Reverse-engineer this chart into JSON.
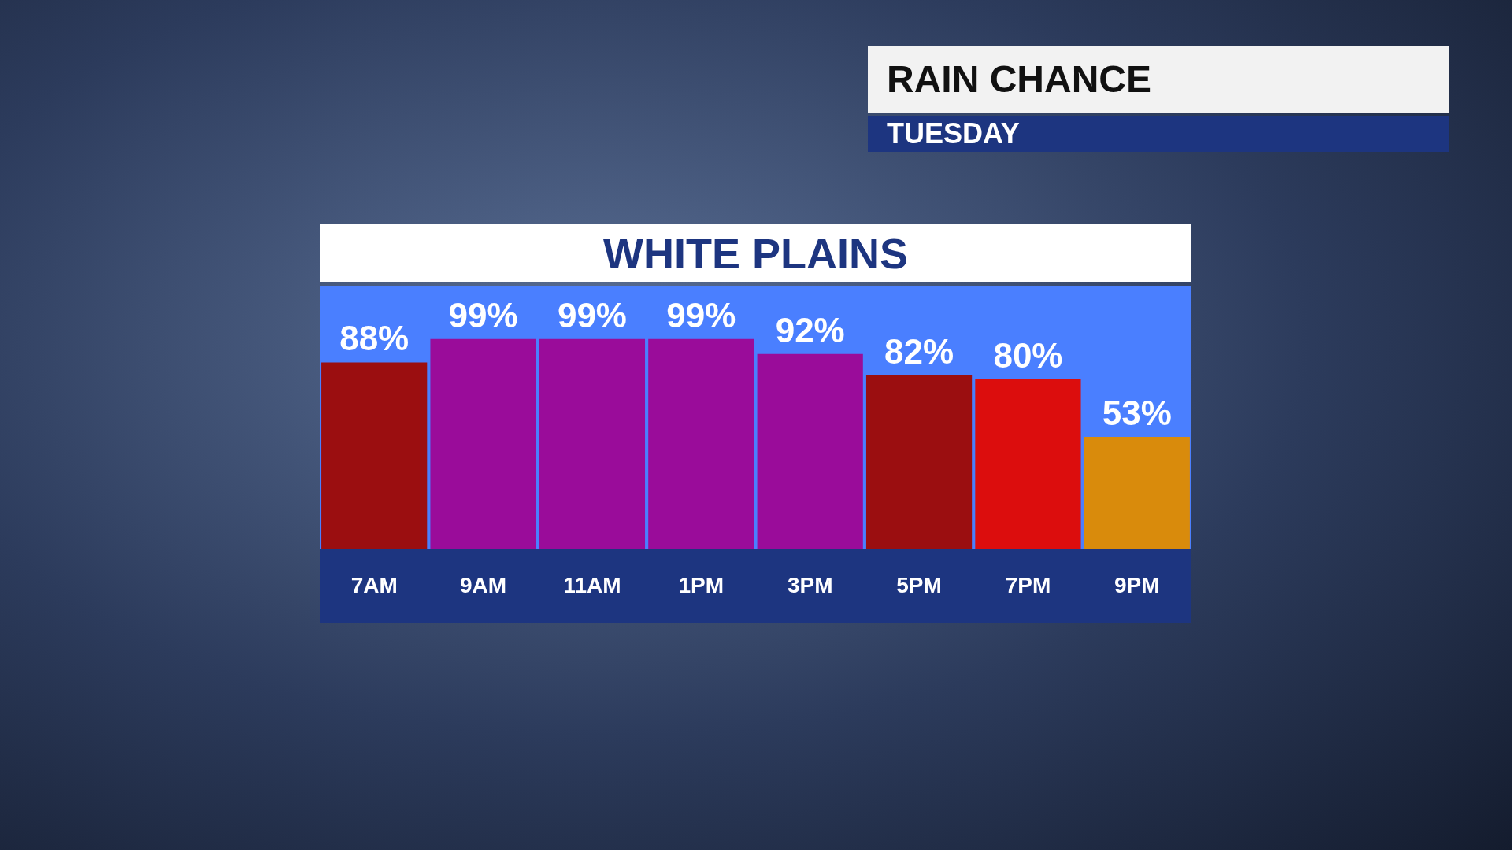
{
  "chart_data": {
    "type": "bar",
    "title": "RAIN CHANCE",
    "subtitle": "TUESDAY",
    "annotations": [
      "WHITE PLAINS"
    ],
    "categories": [
      "7AM",
      "9AM",
      "11AM",
      "1PM",
      "3PM",
      "5PM",
      "7PM",
      "9PM"
    ],
    "values": [
      88,
      99,
      99,
      99,
      92,
      82,
      80,
      53
    ],
    "value_labels": [
      "88%",
      "99%",
      "99%",
      "99%",
      "92%",
      "82%",
      "80%",
      "53%"
    ],
    "colors": [
      "#9b0e10",
      "#9a0c9a",
      "#9a0c9a",
      "#9a0c9a",
      "#9a0c9a",
      "#9b0e10",
      "#dc0d0d",
      "#d98b0c"
    ]
  }
}
